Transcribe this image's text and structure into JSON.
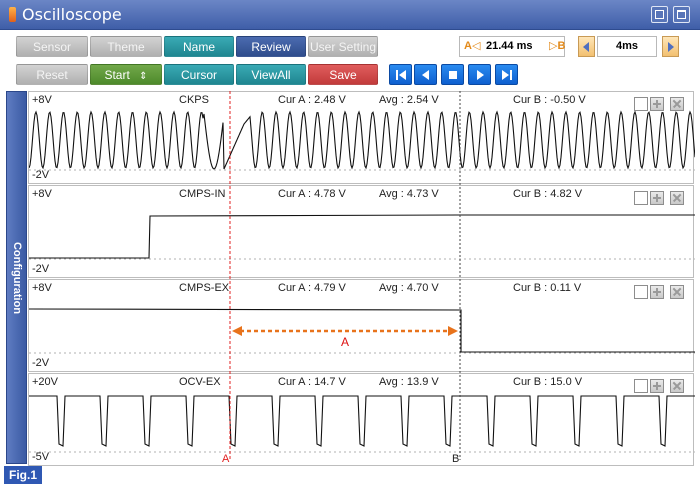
{
  "window": {
    "title": "Oscilloscope"
  },
  "toolbar": {
    "row1": [
      "Sensor",
      "Theme",
      "Name",
      "Review",
      "User Setting"
    ],
    "row2": [
      "Reset",
      "Start",
      "Cursor",
      "ViewAll",
      "Save"
    ],
    "start_stepper_glyph": "⇕",
    "cursor_time": {
      "label_a": "A◁",
      "value": "21.44 ms",
      "label_b": "▷B"
    },
    "time_scale": "4ms"
  },
  "side_tab": {
    "label": "Configuration"
  },
  "channels": [
    {
      "name": "CKPS",
      "top": "+8V",
      "bottom": "-2V",
      "cur_a": "Cur A : 2.48 V",
      "avg": "Avg : 2.54 V",
      "cur_b": "Cur B : -0.50 V",
      "y_range": [
        -2,
        8
      ]
    },
    {
      "name": "CMPS-IN",
      "top": "+8V",
      "bottom": "-2V",
      "cur_a": "Cur A : 4.78 V",
      "avg": "Avg : 4.73 V",
      "cur_b": "Cur B : 4.82 V",
      "y_range": [
        -2,
        8
      ]
    },
    {
      "name": "CMPS-EX",
      "top": "+8V",
      "bottom": "-2V",
      "cur_a": "Cur A : 4.79 V",
      "avg": "Avg : 4.70 V",
      "cur_b": "Cur B : 0.11 V",
      "y_range": [
        -2,
        8
      ]
    },
    {
      "name": "OCV-EX",
      "top": "+20V",
      "bottom": "-5V",
      "cur_a": "Cur A : 14.7 V",
      "avg": "Avg : 13.9 V",
      "cur_b": "Cur B : 15.0 V",
      "y_range": [
        -5,
        20
      ]
    }
  ],
  "cursors": {
    "a_label": "A",
    "b_label": "B"
  },
  "annotation": {
    "label": "A",
    "color": "#e8731c"
  },
  "figure_label": "Fig.1",
  "colors": {
    "accent": "#3f5ea8",
    "cursor_a": "#e02020",
    "cursor_b": "#333333",
    "signal": "#111111"
  }
}
